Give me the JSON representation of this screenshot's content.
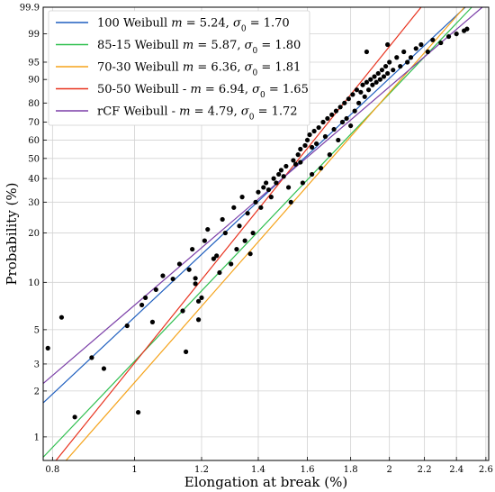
{
  "chart_data": {
    "type": "scatter",
    "title": "",
    "xlabel": "Elongation at break (%)",
    "ylabel": "Probability (%)",
    "x_scale": "log",
    "y_scale": "weibull",
    "xlim": [
      0.78,
      2.62
    ],
    "ylim": [
      0.7,
      99.9
    ],
    "x_ticks": [
      "0.8",
      "1",
      "1.2",
      "1.4",
      "1.6",
      "1.8",
      "2",
      "2.2",
      "2.4",
      "2.6"
    ],
    "x_tick_values": [
      0.8,
      1.0,
      1.2,
      1.4,
      1.6,
      1.8,
      2.0,
      2.2,
      2.4,
      2.6
    ],
    "y_ticks": [
      "1",
      "2",
      "3",
      "5",
      "10",
      "20",
      "30",
      "40",
      "50",
      "60",
      "70",
      "80",
      "90",
      "95",
      "99",
      "99.9"
    ],
    "y_tick_values": [
      1,
      2,
      3,
      5,
      10,
      20,
      30,
      40,
      50,
      60,
      70,
      80,
      90,
      95,
      99,
      99.9
    ],
    "grid": true,
    "legend_position": "top-left",
    "series": [
      {
        "name": "100 Weibull",
        "m": 5.24,
        "sigma0": 1.7,
        "color": "#1f5fbf",
        "legend_parts": [
          "100 Weibull ",
          "m",
          " = 5.24, ",
          "σ",
          "0",
          " = 1.70"
        ]
      },
      {
        "name": "85-15 Weibull",
        "m": 5.87,
        "sigma0": 1.8,
        "color": "#2fbf4f",
        "legend_parts": [
          "85-15 Weibull ",
          "m",
          " = 5.87, ",
          "σ",
          "0",
          " = 1.80"
        ]
      },
      {
        "name": "70-30 Weibull",
        "m": 6.36,
        "sigma0": 1.81,
        "color": "#f5a31a",
        "legend_parts": [
          "70-30 Weibull ",
          "m",
          " = 6.36, ",
          "σ",
          "0",
          " = 1.81"
        ]
      },
      {
        "name": "50-50 Weibull",
        "m": 6.94,
        "sigma0": 1.65,
        "color": "#e8321e",
        "legend_parts": [
          "50-50 Weibull - ",
          "m",
          " = 6.94, ",
          "σ",
          "0",
          " = 1.65"
        ]
      },
      {
        "name": "rCF Weibull",
        "m": 4.79,
        "sigma0": 1.72,
        "color": "#7b3fa8",
        "legend_parts": [
          "rCF Weibull - ",
          "m",
          " = 4.79, ",
          "σ",
          "0",
          " = 1.72"
        ]
      }
    ],
    "points": [
      [
        0.79,
        3.8
      ],
      [
        0.82,
        6.0
      ],
      [
        0.85,
        1.35
      ],
      [
        0.89,
        3.3
      ],
      [
        0.92,
        2.8
      ],
      [
        0.98,
        5.3
      ],
      [
        1.01,
        1.45
      ],
      [
        1.02,
        7.2
      ],
      [
        1.03,
        8.0
      ],
      [
        1.05,
        5.6
      ],
      [
        1.06,
        9.0
      ],
      [
        1.08,
        11.0
      ],
      [
        1.11,
        10.5
      ],
      [
        1.13,
        13.0
      ],
      [
        1.14,
        6.6
      ],
      [
        1.15,
        3.6
      ],
      [
        1.16,
        12.0
      ],
      [
        1.17,
        16.0
      ],
      [
        1.18,
        9.8
      ],
      [
        1.18,
        10.6
      ],
      [
        1.19,
        7.6
      ],
      [
        1.19,
        5.8
      ],
      [
        1.2,
        8.0
      ],
      [
        1.21,
        18.0
      ],
      [
        1.22,
        21.0
      ],
      [
        1.24,
        14.0
      ],
      [
        1.25,
        14.6
      ],
      [
        1.26,
        11.5
      ],
      [
        1.27,
        24.0
      ],
      [
        1.28,
        20.0
      ],
      [
        1.3,
        13.0
      ],
      [
        1.31,
        28.0
      ],
      [
        1.32,
        16.0
      ],
      [
        1.33,
        22.0
      ],
      [
        1.34,
        32.0
      ],
      [
        1.35,
        18.0
      ],
      [
        1.36,
        26.0
      ],
      [
        1.37,
        15.0
      ],
      [
        1.38,
        20.0
      ],
      [
        1.39,
        30.0
      ],
      [
        1.4,
        34.0
      ],
      [
        1.41,
        28.0
      ],
      [
        1.42,
        36.0
      ],
      [
        1.43,
        38.0
      ],
      [
        1.44,
        35.0
      ],
      [
        1.45,
        32.0
      ],
      [
        1.46,
        40.0
      ],
      [
        1.47,
        38.0
      ],
      [
        1.48,
        42.0
      ],
      [
        1.49,
        44.0
      ],
      [
        1.5,
        41.0
      ],
      [
        1.51,
        46.0
      ],
      [
        1.52,
        36.0
      ],
      [
        1.53,
        30.0
      ],
      [
        1.54,
        49.0
      ],
      [
        1.55,
        47.0
      ],
      [
        1.56,
        52.0
      ],
      [
        1.57,
        55.0
      ],
      [
        1.57,
        48.0
      ],
      [
        1.58,
        38.0
      ],
      [
        1.59,
        57.0
      ],
      [
        1.6,
        60.0
      ],
      [
        1.61,
        63.0
      ],
      [
        1.62,
        42.0
      ],
      [
        1.62,
        56.0
      ],
      [
        1.63,
        65.0
      ],
      [
        1.64,
        58.0
      ],
      [
        1.65,
        67.0
      ],
      [
        1.66,
        45.0
      ],
      [
        1.67,
        70.0
      ],
      [
        1.68,
        62.0
      ],
      [
        1.69,
        72.0
      ],
      [
        1.7,
        52.0
      ],
      [
        1.71,
        74.0
      ],
      [
        1.72,
        66.0
      ],
      [
        1.73,
        76.0
      ],
      [
        1.74,
        60.0
      ],
      [
        1.75,
        78.0
      ],
      [
        1.76,
        70.0
      ],
      [
        1.77,
        80.0
      ],
      [
        1.78,
        72.0
      ],
      [
        1.79,
        82.0
      ],
      [
        1.8,
        68.0
      ],
      [
        1.81,
        84.0
      ],
      [
        1.82,
        76.0
      ],
      [
        1.83,
        86.0
      ],
      [
        1.84,
        80.0
      ],
      [
        1.85,
        85.0
      ],
      [
        1.86,
        88.0
      ],
      [
        1.87,
        83.0
      ],
      [
        1.88,
        89.0
      ],
      [
        1.89,
        86.0
      ],
      [
        1.9,
        90.0
      ],
      [
        1.91,
        88.0
      ],
      [
        1.92,
        91.0
      ],
      [
        1.93,
        89.0
      ],
      [
        1.94,
        92.0
      ],
      [
        1.95,
        90.0
      ],
      [
        1.96,
        93.0
      ],
      [
        1.97,
        91.0
      ],
      [
        1.98,
        94.0
      ],
      [
        1.99,
        92.0
      ],
      [
        2.0,
        95.0
      ],
      [
        2.02,
        93.0
      ],
      [
        2.04,
        96.0
      ],
      [
        2.06,
        94.0
      ],
      [
        2.08,
        97.0
      ],
      [
        2.1,
        95.0
      ],
      [
        2.12,
        96.0
      ],
      [
        2.15,
        97.5
      ],
      [
        2.18,
        98.0
      ],
      [
        2.22,
        97.0
      ],
      [
        2.25,
        98.5
      ],
      [
        2.3,
        98.2
      ],
      [
        2.35,
        98.8
      ],
      [
        2.4,
        99.0
      ],
      [
        2.45,
        99.2
      ],
      [
        2.47,
        99.3
      ],
      [
        1.88,
        97.0
      ],
      [
        1.99,
        98.0
      ]
    ]
  }
}
